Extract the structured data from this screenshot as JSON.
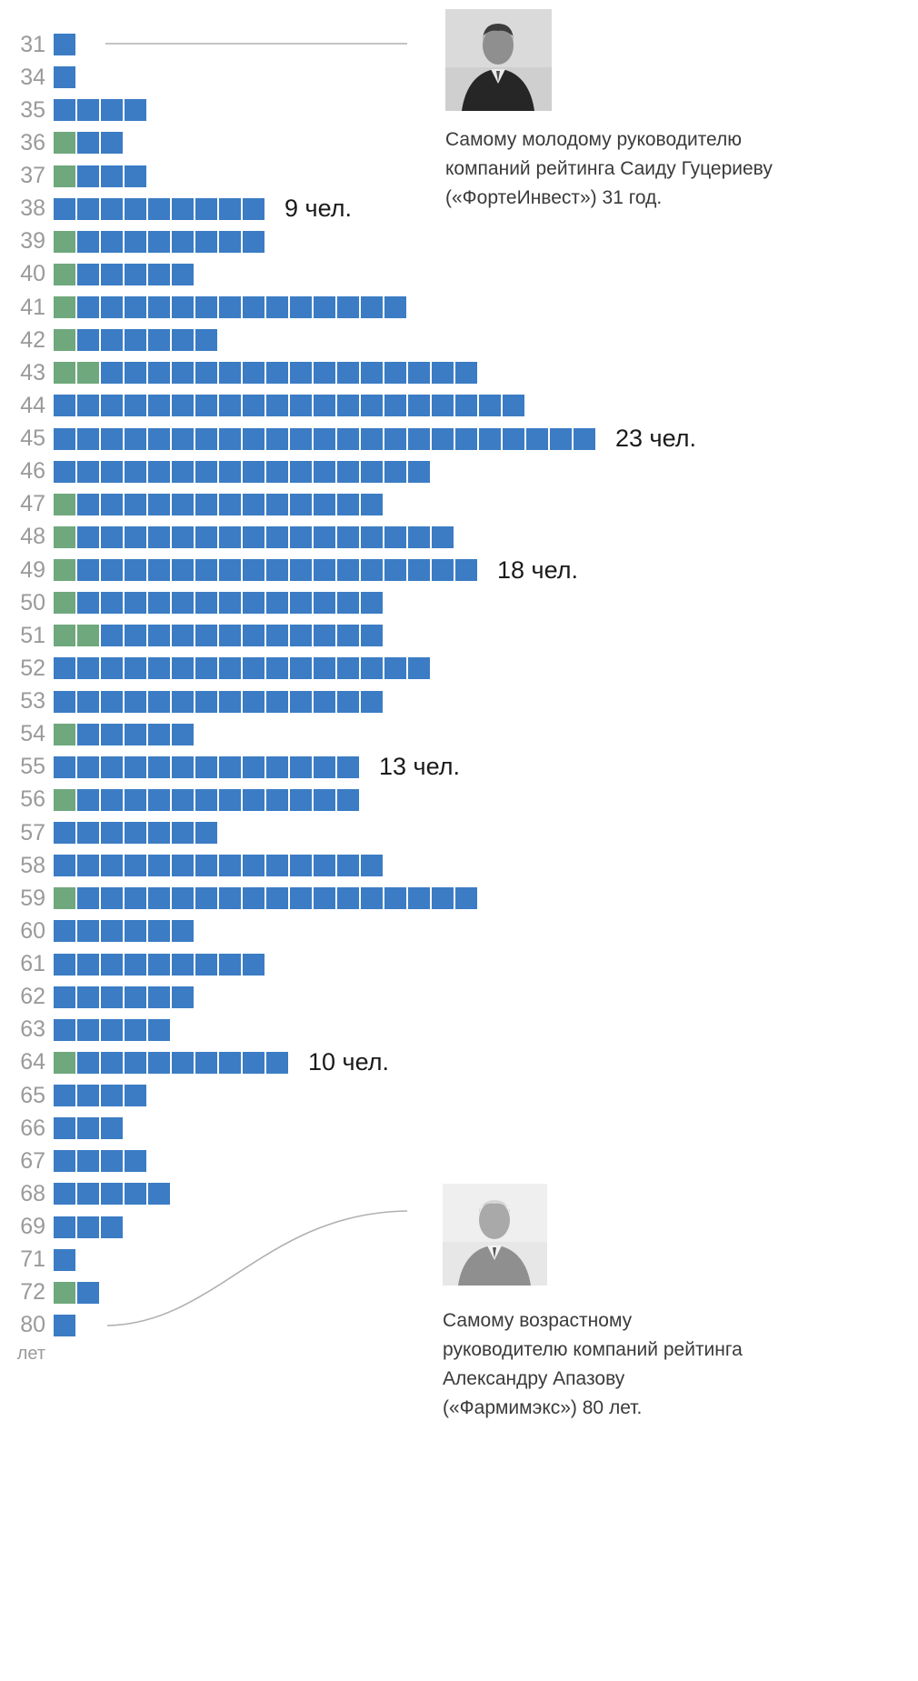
{
  "chart_data": {
    "type": "bar",
    "subtype": "isotype-unit-squares",
    "unit": "1 square = 1 person (чел.)",
    "orientation": "horizontal",
    "axis_unit_label": "лет",
    "colors": {
      "bar_blue": "#3b7cc4",
      "bar_green": "#6fa87c",
      "age_label": "#9a9a9a",
      "count_label": "#1a1a1a",
      "annotation_text": "#3a3a3a",
      "connector": "#b0b0b0"
    },
    "rows": [
      {
        "age": "31",
        "green": 0,
        "blue": 1
      },
      {
        "age": "34",
        "green": 0,
        "blue": 1
      },
      {
        "age": "35",
        "green": 0,
        "blue": 4
      },
      {
        "age": "36",
        "green": 1,
        "blue": 2
      },
      {
        "age": "37",
        "green": 1,
        "blue": 3
      },
      {
        "age": "38",
        "green": 0,
        "blue": 9,
        "label": "9 чел."
      },
      {
        "age": "39",
        "green": 1,
        "blue": 8
      },
      {
        "age": "40",
        "green": 1,
        "blue": 5
      },
      {
        "age": "41",
        "green": 1,
        "blue": 14
      },
      {
        "age": "42",
        "green": 1,
        "blue": 6
      },
      {
        "age": "43",
        "green": 2,
        "blue": 16
      },
      {
        "age": "44",
        "green": 0,
        "blue": 20
      },
      {
        "age": "45",
        "green": 0,
        "blue": 23,
        "label": "23 чел."
      },
      {
        "age": "46",
        "green": 0,
        "blue": 16
      },
      {
        "age": "47",
        "green": 1,
        "blue": 13
      },
      {
        "age": "48",
        "green": 1,
        "blue": 16
      },
      {
        "age": "49",
        "green": 1,
        "blue": 17,
        "label": "18 чел."
      },
      {
        "age": "50",
        "green": 1,
        "blue": 13
      },
      {
        "age": "51",
        "green": 2,
        "blue": 12
      },
      {
        "age": "52",
        "green": 0,
        "blue": 16
      },
      {
        "age": "53",
        "green": 0,
        "blue": 14
      },
      {
        "age": "54",
        "green": 1,
        "blue": 5
      },
      {
        "age": "55",
        "green": 0,
        "blue": 13,
        "label": "13 чел."
      },
      {
        "age": "56",
        "green": 1,
        "blue": 12
      },
      {
        "age": "57",
        "green": 0,
        "blue": 7
      },
      {
        "age": "58",
        "green": 0,
        "blue": 14
      },
      {
        "age": "59",
        "green": 1,
        "blue": 17
      },
      {
        "age": "60",
        "green": 0,
        "blue": 6
      },
      {
        "age": "61",
        "green": 0,
        "blue": 9
      },
      {
        "age": "62",
        "green": 0,
        "blue": 6
      },
      {
        "age": "63",
        "green": 0,
        "blue": 5
      },
      {
        "age": "64",
        "green": 1,
        "blue": 9,
        "label": "10 чел."
      },
      {
        "age": "65",
        "green": 0,
        "blue": 4
      },
      {
        "age": "66",
        "green": 0,
        "blue": 3
      },
      {
        "age": "67",
        "green": 0,
        "blue": 4
      },
      {
        "age": "68",
        "green": 0,
        "blue": 5
      },
      {
        "age": "69",
        "green": 0,
        "blue": 3
      },
      {
        "age": "71",
        "green": 0,
        "blue": 1
      },
      {
        "age": "72",
        "green": 1,
        "blue": 1
      },
      {
        "age": "80",
        "green": 0,
        "blue": 1
      }
    ],
    "annotations": {
      "youngest": {
        "text": "Самому молодому руководителю компаний рейтинга Саиду Гуцериеву («ФортеИнвест») 31 год.",
        "photo": "portrait-young-man-in-dark-suit"
      },
      "oldest": {
        "text": "Самому возрастному руководителю компаний рейтинга Александру Апазову («Фармимэкс») 80 лет.",
        "photo": "portrait-elderly-man-in-light-suit"
      }
    }
  }
}
